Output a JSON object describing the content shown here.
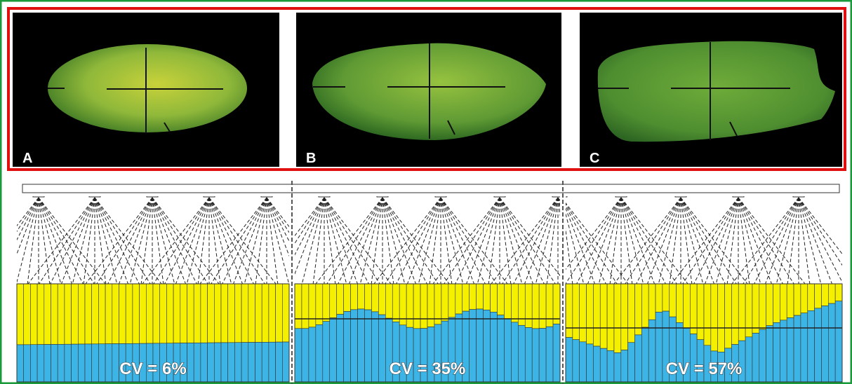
{
  "figure": {
    "panels": [
      {
        "label": "A",
        "cv": "CV = 6%"
      },
      {
        "label": "B",
        "cv": "CV = 35%"
      },
      {
        "label": "C",
        "cv": "CV = 57%"
      }
    ]
  }
}
